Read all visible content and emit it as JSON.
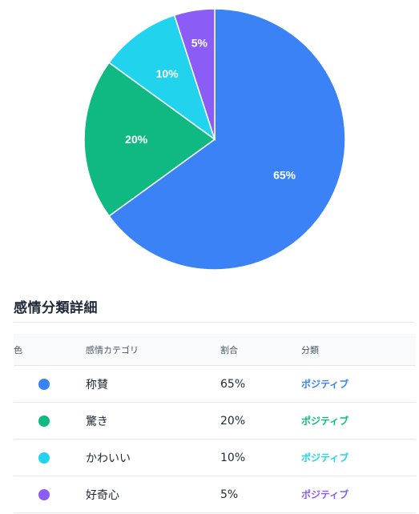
{
  "chart_data": {
    "type": "pie",
    "categories": [
      "称賛",
      "驚き",
      "かわいい",
      "好奇心"
    ],
    "values": [
      65,
      20,
      10,
      5
    ],
    "labels": [
      "65%",
      "20%",
      "10%",
      "5%"
    ],
    "colors": [
      "#3b82f6",
      "#10b981",
      "#22d3ee",
      "#8b5cf6"
    ],
    "title": "",
    "legend": "none"
  },
  "section": {
    "title": "感情分類詳細"
  },
  "table": {
    "headers": {
      "color": "色",
      "category": "感情カテゴリ",
      "ratio": "割合",
      "classification": "分類"
    },
    "rows": [
      {
        "color": "#3b82f6",
        "category": "称賛",
        "ratio": "65%",
        "classification": "ポジティブ"
      },
      {
        "color": "#10b981",
        "category": "驚き",
        "ratio": "20%",
        "classification": "ポジティブ"
      },
      {
        "color": "#22d3ee",
        "category": "かわいい",
        "ratio": "10%",
        "classification": "ポジティブ"
      },
      {
        "color": "#8b5cf6",
        "category": "好奇心",
        "ratio": "5%",
        "classification": "ポジティブ"
      }
    ]
  }
}
